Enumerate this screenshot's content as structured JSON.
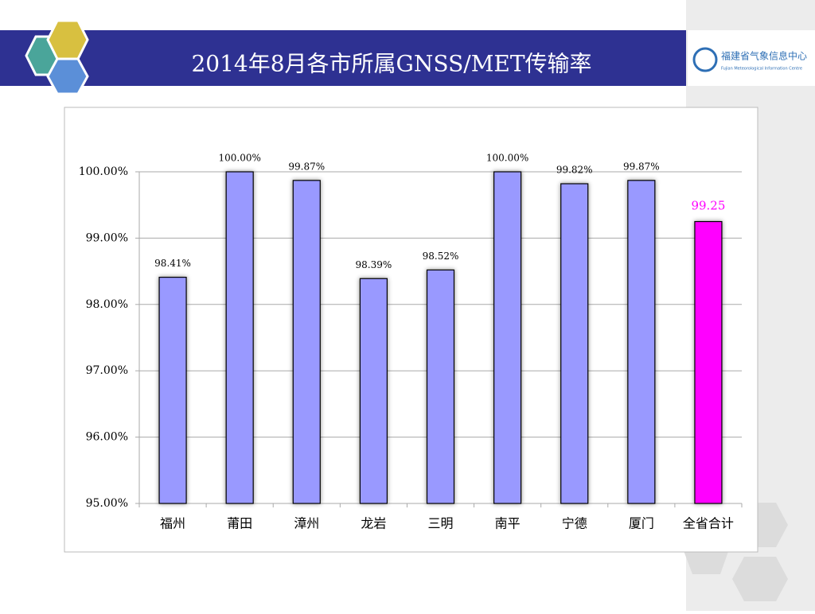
{
  "header": {
    "logo_text": "福建省气象信息中心",
    "logo_subtext": "Fujian Meteorological Information Centre"
  },
  "chart_data": {
    "type": "bar",
    "title": "2014年8月各市所属GNSS/MET传输率",
    "categories": [
      "福州",
      "莆田",
      "漳州",
      "龙岩",
      "三明",
      "南平",
      "宁德",
      "厦门",
      "全省合计"
    ],
    "values": [
      98.41,
      100,
      99.87,
      98.39,
      98.52,
      100,
      99.82,
      99.87,
      99.25
    ],
    "value_labels": [
      "98.41%",
      "100.00%",
      "99.87%",
      "98.39%",
      "98.52%",
      "100.00%",
      "99.82%",
      "99.87%",
      "99.25"
    ],
    "colors": [
      "#9999ff",
      "#9999ff",
      "#9999ff",
      "#9999ff",
      "#9999ff",
      "#9999ff",
      "#9999ff",
      "#9999ff",
      "#ff00ff"
    ],
    "value_label_colors": [
      "#000000",
      "#000000",
      "#000000",
      "#000000",
      "#000000",
      "#000000",
      "#000000",
      "#000000",
      "#ff00ff"
    ],
    "ylim": [
      95,
      100
    ],
    "yticks": [
      {
        "value": 95,
        "label": "95.00%"
      },
      {
        "value": 96,
        "label": "96.00%"
      },
      {
        "value": 97,
        "label": "97.00%"
      },
      {
        "value": 98,
        "label": "98.00%"
      },
      {
        "value": 99,
        "label": "99.00%"
      },
      {
        "value": 100,
        "label": "100.00%"
      }
    ],
    "grid": true
  }
}
